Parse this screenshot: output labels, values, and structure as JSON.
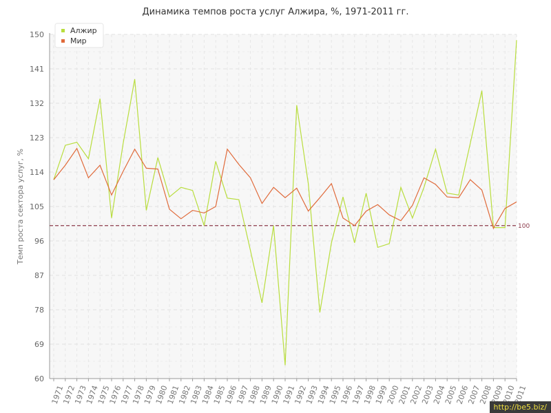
{
  "chart_data": {
    "type": "line",
    "title": "Динамика темпов роста услуг Алжира, %, 1971-2011 гг.",
    "ylabel": "Темп роста сектора услуг, %",
    "xlabel": "",
    "ylim": [
      60,
      150
    ],
    "yticks": [
      60,
      69,
      78,
      87,
      96,
      105,
      114,
      123,
      132,
      141,
      150
    ],
    "categories": [
      "1971",
      "1972",
      "1973",
      "1974",
      "1975",
      "1976",
      "1977",
      "1978",
      "1979",
      "1980",
      "1981",
      "1982",
      "1983",
      "1984",
      "1985",
      "1986",
      "1987",
      "1988",
      "1989",
      "1990",
      "1991",
      "1992",
      "1993",
      "1994",
      "1995",
      "1996",
      "1997",
      "1998",
      "1999",
      "2000",
      "2001",
      "2002",
      "2003",
      "2004",
      "2005",
      "2006",
      "2007",
      "2008",
      "2009",
      "2010",
      "2011"
    ],
    "series": [
      {
        "name": "Алжир",
        "color": "#b8dd3c",
        "values": [
          112,
          121,
          121.8,
          117.5,
          133.2,
          102,
          121.5,
          138.3,
          104,
          117.8,
          107.5,
          110,
          109.2,
          100,
          116.8,
          107.2,
          106.8,
          93.5,
          79.8,
          100,
          63.5,
          131.5,
          111,
          77.3,
          95.5,
          107.5,
          95.5,
          108.5,
          94.3,
          95.3,
          110,
          102,
          110,
          120,
          108.5,
          108,
          121.5,
          135.3,
          99.5,
          99.5,
          148.5
        ]
      },
      {
        "name": "Мир",
        "color": "#e06a3a",
        "values": [
          112,
          115.8,
          120.2,
          112.5,
          115.8,
          108,
          114.2,
          120,
          115,
          114.8,
          104.3,
          101.8,
          104,
          103.3,
          105,
          120,
          116,
          112.5,
          105.8,
          110,
          107.3,
          109.8,
          103.8,
          107.3,
          111,
          102,
          100,
          103.8,
          105.5,
          102.8,
          101.3,
          105.3,
          112.5,
          110.8,
          107.5,
          107.3,
          112,
          109.3,
          99.3,
          104.5,
          106.2
        ]
      }
    ],
    "reference_line": {
      "value": 100,
      "label": "100",
      "color": "#8b3a4a"
    },
    "legend": {
      "placement": "top-left"
    },
    "grid": true
  },
  "watermark": "http://be5.biz/"
}
